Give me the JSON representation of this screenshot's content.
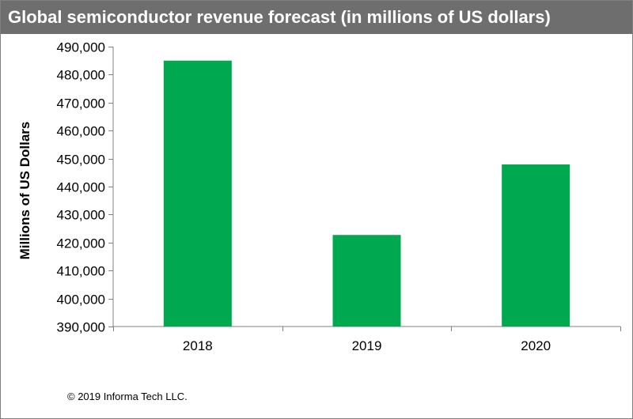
{
  "chart_data": {
    "type": "bar",
    "title": "Global semiconductor revenue forecast (in millions of US dollars)",
    "xlabel": "",
    "ylabel": "Millions  of US Dollars",
    "categories": [
      "2018",
      "2019",
      "2020"
    ],
    "values": [
      485000,
      422700,
      447900
    ],
    "ylim": [
      390000,
      490000
    ],
    "yticks": [
      390000,
      400000,
      410000,
      420000,
      430000,
      440000,
      450000,
      460000,
      470000,
      480000,
      490000
    ],
    "ytick_labels": [
      "390,000",
      "400,000",
      "410,000",
      "420,000",
      "430,000",
      "440,000",
      "450,000",
      "460,000",
      "470,000",
      "480,000",
      "490,000"
    ],
    "bar_color": "#00a84f",
    "grid": false,
    "legend": "none"
  },
  "footer": {
    "copyright": "© 2019 Informa Tech LLC."
  },
  "colors": {
    "title_bar": "#6e6e6e",
    "title_text": "#ffffff",
    "axis": "#808080"
  }
}
